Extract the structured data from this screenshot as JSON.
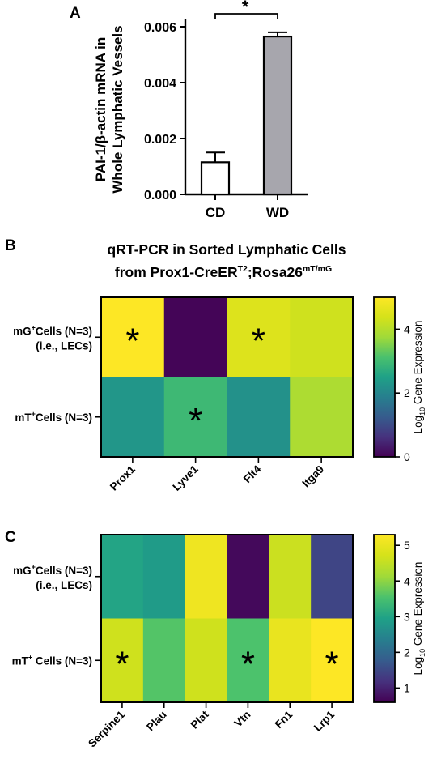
{
  "chart_data": [
    {
      "type": "bar",
      "panel_label": "A",
      "ylabel_line1": "PAI-1/β-actin mRNA in",
      "ylabel_line2": "Whole Lymphatic Vessels",
      "categories": [
        "CD",
        "WD"
      ],
      "values": [
        0.00115,
        0.00565
      ],
      "errors": [
        0.00035,
        0.00015
      ],
      "bar_colors": [
        "#ffffff",
        "#a7a6ad"
      ],
      "ylim": [
        0,
        0.006
      ],
      "yticks": [
        "0.000",
        "0.002",
        "0.004",
        "0.006"
      ],
      "significance": "*"
    },
    {
      "type": "heatmap",
      "panel_label": "B",
      "title_line1": "qRT-PCR in Sorted Lymphatic Cells",
      "title_line2": {
        "pre": "from Prox1-CreER",
        "sup1": "T2",
        "mid": ";Rosa26",
        "sup2": "mT/mG"
      },
      "rows": [
        {
          "label_a": "mG",
          "sup": "+",
          "label_b": "Cells (N=3)",
          "label_line2": "(i.e., LECs)"
        },
        {
          "label_a": "mT",
          "sup": "+",
          "label_b": "Cells (N=3)",
          "label_line2": ""
        }
      ],
      "columns": [
        "Prox1",
        "Lyve1",
        "Flt4",
        "Itga9"
      ],
      "values": [
        [
          5.0,
          0.05,
          4.5,
          4.3
        ],
        [
          2.3,
          2.95,
          2.2,
          3.9
        ]
      ],
      "stars": [
        [
          true,
          false,
          true,
          false
        ],
        [
          false,
          true,
          false,
          false
        ]
      ],
      "colorbar": {
        "min": 0,
        "max": 5.0,
        "ticks": [
          "0",
          "2",
          "4"
        ],
        "tick_values": [
          0,
          2,
          4
        ],
        "label_pre": "Log",
        "label_sub": "10",
        "label_post": " Gene Expression"
      }
    },
    {
      "type": "heatmap",
      "panel_label": "C",
      "rows": [
        {
          "label_a": "mG",
          "sup": "+",
          "label_b": "Cells (N=3)",
          "label_line2": "(i.e., LECs)"
        },
        {
          "label_a": "mT",
          "sup": "+",
          "label_b": " Cells (N=3)",
          "label_line2": ""
        }
      ],
      "columns": [
        "Serpine1",
        "Plau",
        "Plat",
        "Vtn",
        "Fn1",
        "Lrp1"
      ],
      "values": [
        [
          3.0,
          2.85,
          5.1,
          0.7,
          4.6,
          1.45
        ],
        [
          4.65,
          3.6,
          4.65,
          3.55,
          5.0,
          5.3
        ]
      ],
      "stars": [
        [
          false,
          false,
          false,
          false,
          false,
          false
        ],
        [
          true,
          false,
          false,
          true,
          false,
          true
        ]
      ],
      "colorbar": {
        "min": 0.6,
        "max": 5.3,
        "ticks": [
          "1",
          "2",
          "3",
          "4",
          "5"
        ],
        "tick_values": [
          1,
          2,
          3,
          4,
          5
        ],
        "label_pre": "Log",
        "label_sub": "10",
        "label_post": " Gene Expression"
      }
    }
  ]
}
